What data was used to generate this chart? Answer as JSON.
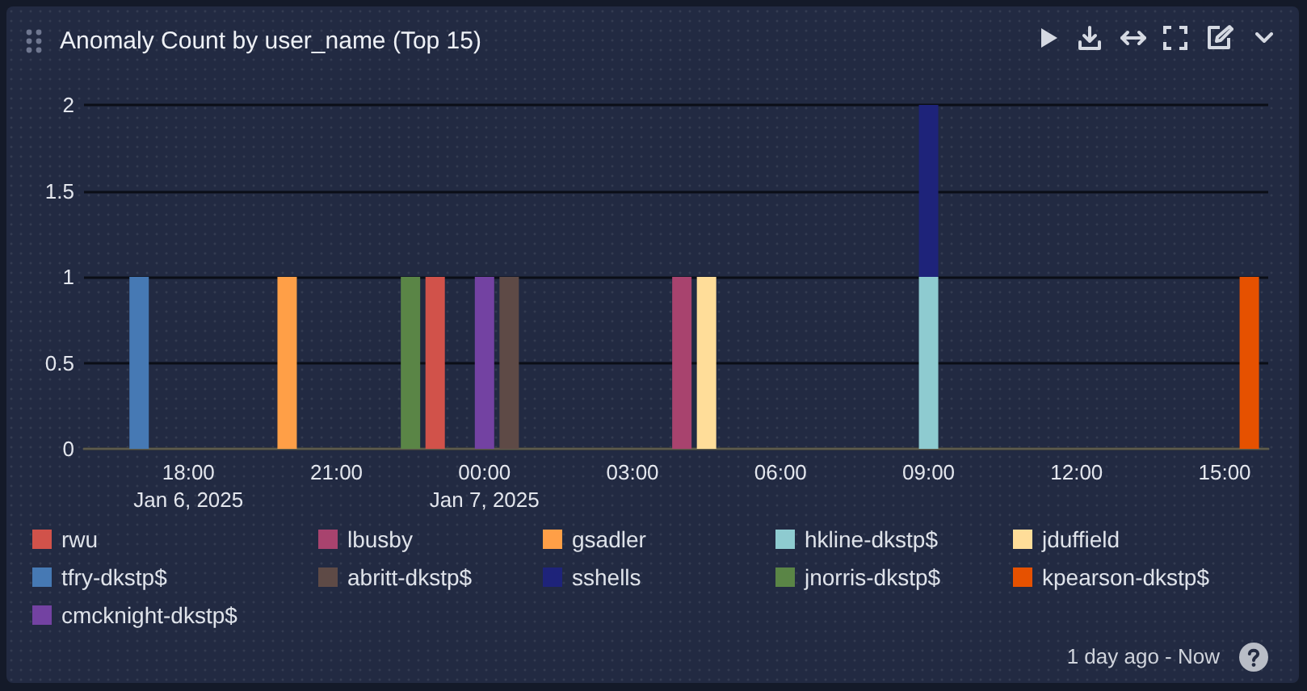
{
  "chart_data": {
    "type": "bar",
    "title": "Anomaly Count by user_name (Top 15)",
    "stacked": true,
    "x": [
      "2025-01-06T17:00",
      "2025-01-06T20:00",
      "2025-01-06T22:30",
      "2025-01-06T23:00",
      "2025-01-07T00:00",
      "2025-01-07T00:30",
      "2025-01-07T04:00",
      "2025-01-07T04:30",
      "2025-01-07T09:00",
      "2025-01-07T15:30"
    ],
    "xlim": [
      "2025-01-06T15:53",
      "2025-01-07T15:53"
    ],
    "xticks": [
      {
        "value": "2025-01-06T18:00",
        "label": "18:00\nJan 6, 2025"
      },
      {
        "value": "2025-01-06T21:00",
        "label": "21:00"
      },
      {
        "value": "2025-01-07T00:00",
        "label": "00:00\nJan 7, 2025"
      },
      {
        "value": "2025-01-07T03:00",
        "label": "03:00"
      },
      {
        "value": "2025-01-07T06:00",
        "label": "06:00"
      },
      {
        "value": "2025-01-07T09:00",
        "label": "09:00"
      },
      {
        "value": "2025-01-07T12:00",
        "label": "12:00"
      },
      {
        "value": "2025-01-07T15:00",
        "label": "15:00"
      }
    ],
    "ylim": [
      0,
      2
    ],
    "yticks": [
      0,
      0.5,
      1,
      1.5,
      2
    ],
    "grid": "y",
    "legend": "bottom",
    "annotations": [
      "1 day ago - Now"
    ],
    "series": [
      {
        "name": "rwu",
        "color": "#d1524a",
        "values": [
          null,
          null,
          null,
          1,
          null,
          null,
          null,
          null,
          null,
          null
        ]
      },
      {
        "name": "lbusby",
        "color": "#a8436e",
        "values": [
          null,
          null,
          null,
          null,
          null,
          null,
          1,
          null,
          null,
          null
        ]
      },
      {
        "name": "gsadler",
        "color": "#ff9f47",
        "values": [
          null,
          1,
          null,
          null,
          null,
          null,
          null,
          null,
          null,
          null
        ]
      },
      {
        "name": "hkline-dkstp$",
        "color": "#8ecbd0",
        "values": [
          null,
          null,
          null,
          null,
          null,
          null,
          null,
          null,
          1,
          null
        ]
      },
      {
        "name": "jduffield",
        "color": "#ffdd99",
        "values": [
          null,
          null,
          null,
          null,
          null,
          null,
          null,
          1,
          null,
          null
        ]
      },
      {
        "name": "tfry-dkstp$",
        "color": "#4679b4",
        "values": [
          1,
          null,
          null,
          null,
          null,
          null,
          null,
          null,
          null,
          null
        ]
      },
      {
        "name": "abritt-dkstp$",
        "color": "#5e4a46",
        "values": [
          null,
          null,
          null,
          null,
          null,
          1,
          null,
          null,
          null,
          null
        ]
      },
      {
        "name": "sshells",
        "color": "#1e237a",
        "values": [
          null,
          null,
          null,
          null,
          null,
          null,
          null,
          null,
          1,
          null
        ]
      },
      {
        "name": "jnorris-dkstp$",
        "color": "#5a8546",
        "values": [
          null,
          null,
          1,
          null,
          null,
          null,
          null,
          null,
          null,
          null
        ]
      },
      {
        "name": "kpearson-dkstp$",
        "color": "#e65100",
        "values": [
          null,
          null,
          null,
          null,
          null,
          null,
          null,
          null,
          null,
          1
        ]
      },
      {
        "name": "cmcknight-dkstp$",
        "color": "#7342a2",
        "values": [
          null,
          null,
          null,
          null,
          1,
          null,
          null,
          null,
          null,
          null
        ]
      }
    ]
  }
}
